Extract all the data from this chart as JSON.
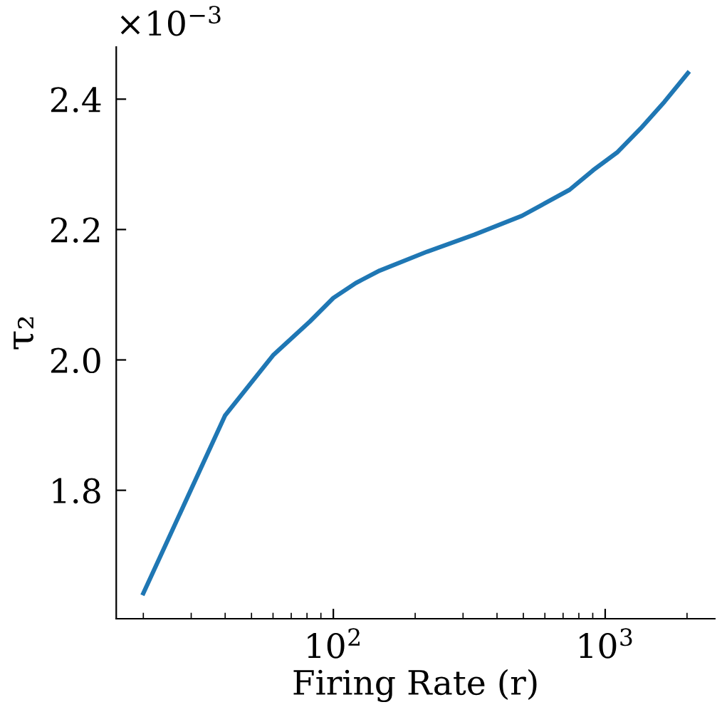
{
  "chart_data": {
    "type": "line",
    "xlabel": "Firing Rate (r)",
    "ylabel": "τ₂",
    "annotations": [
      "×10$^{−3}$"
    ],
    "x": [
      20,
      40,
      60,
      82,
      100,
      121,
      148,
      221,
      330,
      494,
      740,
      903,
      1105,
      1350,
      1652,
      2015
    ],
    "series": [
      {
        "color": "#1f77b4",
        "values": [
          1.642,
          1.915,
          2.007,
          2.059,
          2.095,
          2.118,
          2.137,
          2.166,
          2.192,
          2.221,
          2.261,
          2.291,
          2.318,
          2.355,
          2.396,
          2.44
        ]
      }
    ],
    "log": "x",
    "xlim": [
      15.9,
      2530
    ],
    "ylim": [
      1.603,
      2.48
    ],
    "xticks": [
      {
        "value": 100,
        "label": "10$^{2}$"
      },
      {
        "value": 1000,
        "label": "10$^{3}$"
      }
    ],
    "yticks": [
      1.8,
      {
        "value": 2.0,
        "label": "2.0"
      },
      2.2,
      2.4
    ],
    "grid": false,
    "marker": "none",
    "line_style": "solid"
  }
}
